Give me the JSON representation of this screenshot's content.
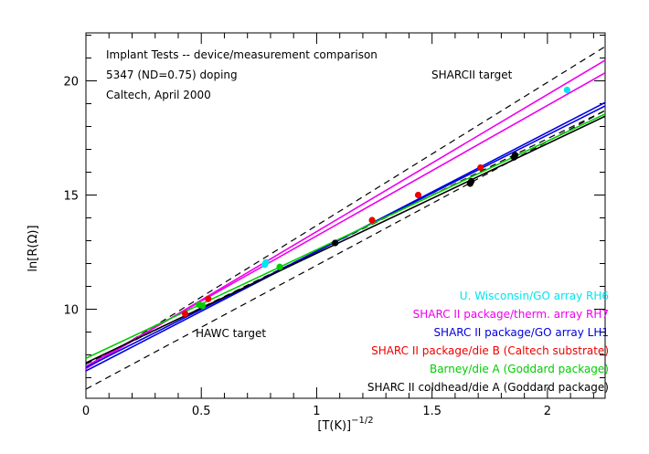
{
  "chart_data": {
    "type": "scatter",
    "title": "",
    "xlabel": "[T(K)]",
    "xlabel_exponent": "−1/2",
    "ylabel": "ln[R(Ω)]",
    "xlim": [
      0,
      2.25
    ],
    "ylim": [
      6.1,
      22.1
    ],
    "x_ticks": [
      0,
      0.5,
      1,
      1.5,
      2
    ],
    "x_tick_labels": [
      "0",
      "0.5",
      "1",
      "1.5",
      "2"
    ],
    "y_ticks": [
      10,
      15,
      20
    ],
    "y_tick_labels": [
      "10",
      "15",
      "20"
    ],
    "notes": [
      "Implant Tests -- device/measurement comparison",
      "5347 (ND=0.75) doping",
      "Caltech, April 2000"
    ],
    "target_labels": [
      "SHARCII target",
      "HAWC target"
    ],
    "reference_lines": [
      {
        "label": "upper dashed",
        "x": [
          0,
          2.25
        ],
        "y": [
          7.4,
          21.5
        ]
      },
      {
        "label": "HAWC target",
        "x": [
          0,
          2.25
        ],
        "y": [
          6.5,
          18.7
        ]
      },
      {
        "label": "mid dashed",
        "x": [
          0,
          2.25
        ],
        "y": [
          7.6,
          18.7
        ]
      }
    ],
    "legend_position": "bottom-right",
    "series": [
      {
        "name": "U. Wisconsin/GO array RH6",
        "color": "#00e5ee",
        "points": [
          [
            0.775,
            11.95
          ],
          [
            0.78,
            12.05
          ],
          [
            2.085,
            19.6
          ]
        ],
        "fits": []
      },
      {
        "name": "SHARC II package/therm. array RH7",
        "color": "#ee00ee",
        "points": [],
        "fits": [
          {
            "x": [
              0,
              2.25
            ],
            "y": [
              7.4,
              20.9
            ]
          },
          {
            "x": [
              0,
              2.25
            ],
            "y": [
              7.5,
              20.35
            ]
          }
        ]
      },
      {
        "name": "SHARC II package/GO array LH1",
        "color": "#0000dd",
        "points": [],
        "fits": [
          {
            "x": [
              0,
              2.25
            ],
            "y": [
              7.3,
              19.05
            ]
          },
          {
            "x": [
              0,
              2.25
            ],
            "y": [
              7.45,
              18.9
            ]
          }
        ]
      },
      {
        "name": "SHARC II package/die B (Caltech substrate)",
        "color": "#ee0000",
        "points": [
          [
            0.43,
            9.8
          ],
          [
            0.53,
            10.45
          ],
          [
            1.24,
            13.9
          ],
          [
            1.44,
            15.0
          ],
          [
            1.71,
            16.2
          ]
        ],
        "fits": []
      },
      {
        "name": "Barney/die A (Goddard package)",
        "color": "#00cc00",
        "points": [
          [
            0.49,
            10.2
          ],
          [
            0.505,
            10.15
          ],
          [
            0.84,
            11.85
          ]
        ],
        "fits": [
          {
            "x": [
              0,
              2.25
            ],
            "y": [
              7.85,
              18.55
            ]
          }
        ]
      },
      {
        "name": "SHARC II coldhead/die A (Goddard package)",
        "color": "#000000",
        "points": [
          [
            1.08,
            12.9
          ],
          [
            1.665,
            15.5
          ],
          [
            1.67,
            15.6
          ],
          [
            1.855,
            16.65
          ],
          [
            1.86,
            16.75
          ]
        ],
        "fits": [
          {
            "x": [
              0,
              2.25
            ],
            "y": [
              7.65,
              18.45
            ]
          }
        ]
      }
    ]
  }
}
